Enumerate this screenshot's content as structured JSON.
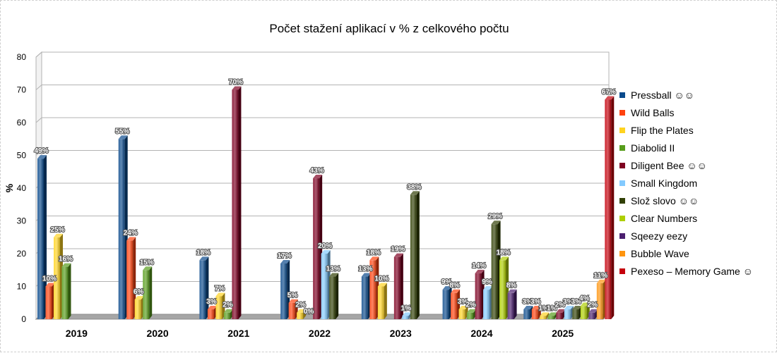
{
  "chart_data": {
    "type": "bar",
    "title": "Počet stažení aplikací v % z celkového počtu",
    "ylabel": "%",
    "xlabel": "",
    "ylim": [
      0,
      80
    ],
    "yticks": [
      0,
      10,
      20,
      30,
      40,
      50,
      60,
      70,
      80
    ],
    "grid": true,
    "legend_position": "right",
    "categories": [
      "2019",
      "2020",
      "2021",
      "2022",
      "2023",
      "2024",
      "2025"
    ],
    "series": [
      {
        "name": "Pressball ☺☺",
        "color": "#0a4a8c",
        "values": [
          49,
          55,
          18,
          17,
          13,
          9,
          3
        ],
        "labels": [
          "49%",
          "55%",
          "18%",
          "17%",
          "13%",
          "9%",
          "3%"
        ]
      },
      {
        "name": "Wild Balls",
        "color": "#ff420e",
        "values": [
          10,
          24,
          3,
          5,
          18,
          8,
          3
        ],
        "labels": [
          "10%",
          "24%",
          "3%",
          "5%",
          "18%",
          "8%",
          "3%"
        ]
      },
      {
        "name": "Flip the Plates",
        "color": "#ffd320",
        "values": [
          25,
          6,
          7,
          2,
          10,
          3,
          1
        ],
        "labels": [
          "25%",
          "6%",
          "7%",
          "2%",
          "10%",
          "3%",
          "1%"
        ]
      },
      {
        "name": "Diabolid II",
        "color": "#579d1c",
        "values": [
          16,
          15,
          2,
          0,
          0,
          2,
          1
        ],
        "labels": [
          "16%",
          "15%",
          "2%",
          "0%",
          "",
          "2%",
          "1%"
        ]
      },
      {
        "name": "Diligent Bee ☺☺",
        "color": "#7e0021",
        "values": [
          null,
          null,
          70,
          43,
          19,
          14,
          2
        ],
        "labels": [
          "",
          "",
          "70%",
          "43%",
          "19%",
          "14%",
          "2%"
        ]
      },
      {
        "name": "Small Kingdom",
        "color": "#83caff",
        "values": [
          null,
          null,
          null,
          20,
          1,
          9,
          3
        ],
        "labels": [
          "",
          "",
          "",
          "20%",
          "1%",
          "9%",
          "3%"
        ]
      },
      {
        "name": "Slož slovo ☺☺",
        "color": "#314004",
        "values": [
          null,
          null,
          null,
          13,
          38,
          29,
          3
        ],
        "labels": [
          "",
          "",
          "",
          "13%",
          "38%",
          "29%",
          "3%"
        ]
      },
      {
        "name": "Clear Numbers",
        "color": "#aecf00",
        "values": [
          null,
          null,
          null,
          null,
          null,
          18,
          4
        ],
        "labels": [
          "",
          "",
          "",
          "",
          "",
          "18%",
          "4%"
        ]
      },
      {
        "name": "Sqeezy eezy",
        "color": "#4b1f6f",
        "values": [
          null,
          null,
          null,
          null,
          null,
          8,
          2
        ],
        "labels": [
          "",
          "",
          "",
          "",
          "",
          "8%",
          "2%"
        ]
      },
      {
        "name": "Bubble Wave",
        "color": "#ff950e",
        "values": [
          null,
          null,
          null,
          null,
          null,
          null,
          11
        ],
        "labels": [
          "",
          "",
          "",
          "",
          "",
          "",
          "11%"
        ]
      },
      {
        "name": "Pexeso – Memory Game ☺",
        "color": "#c5000b",
        "values": [
          null,
          null,
          null,
          null,
          null,
          null,
          67
        ],
        "labels": [
          "",
          "",
          "",
          "",
          "",
          "",
          "67%"
        ]
      }
    ]
  }
}
